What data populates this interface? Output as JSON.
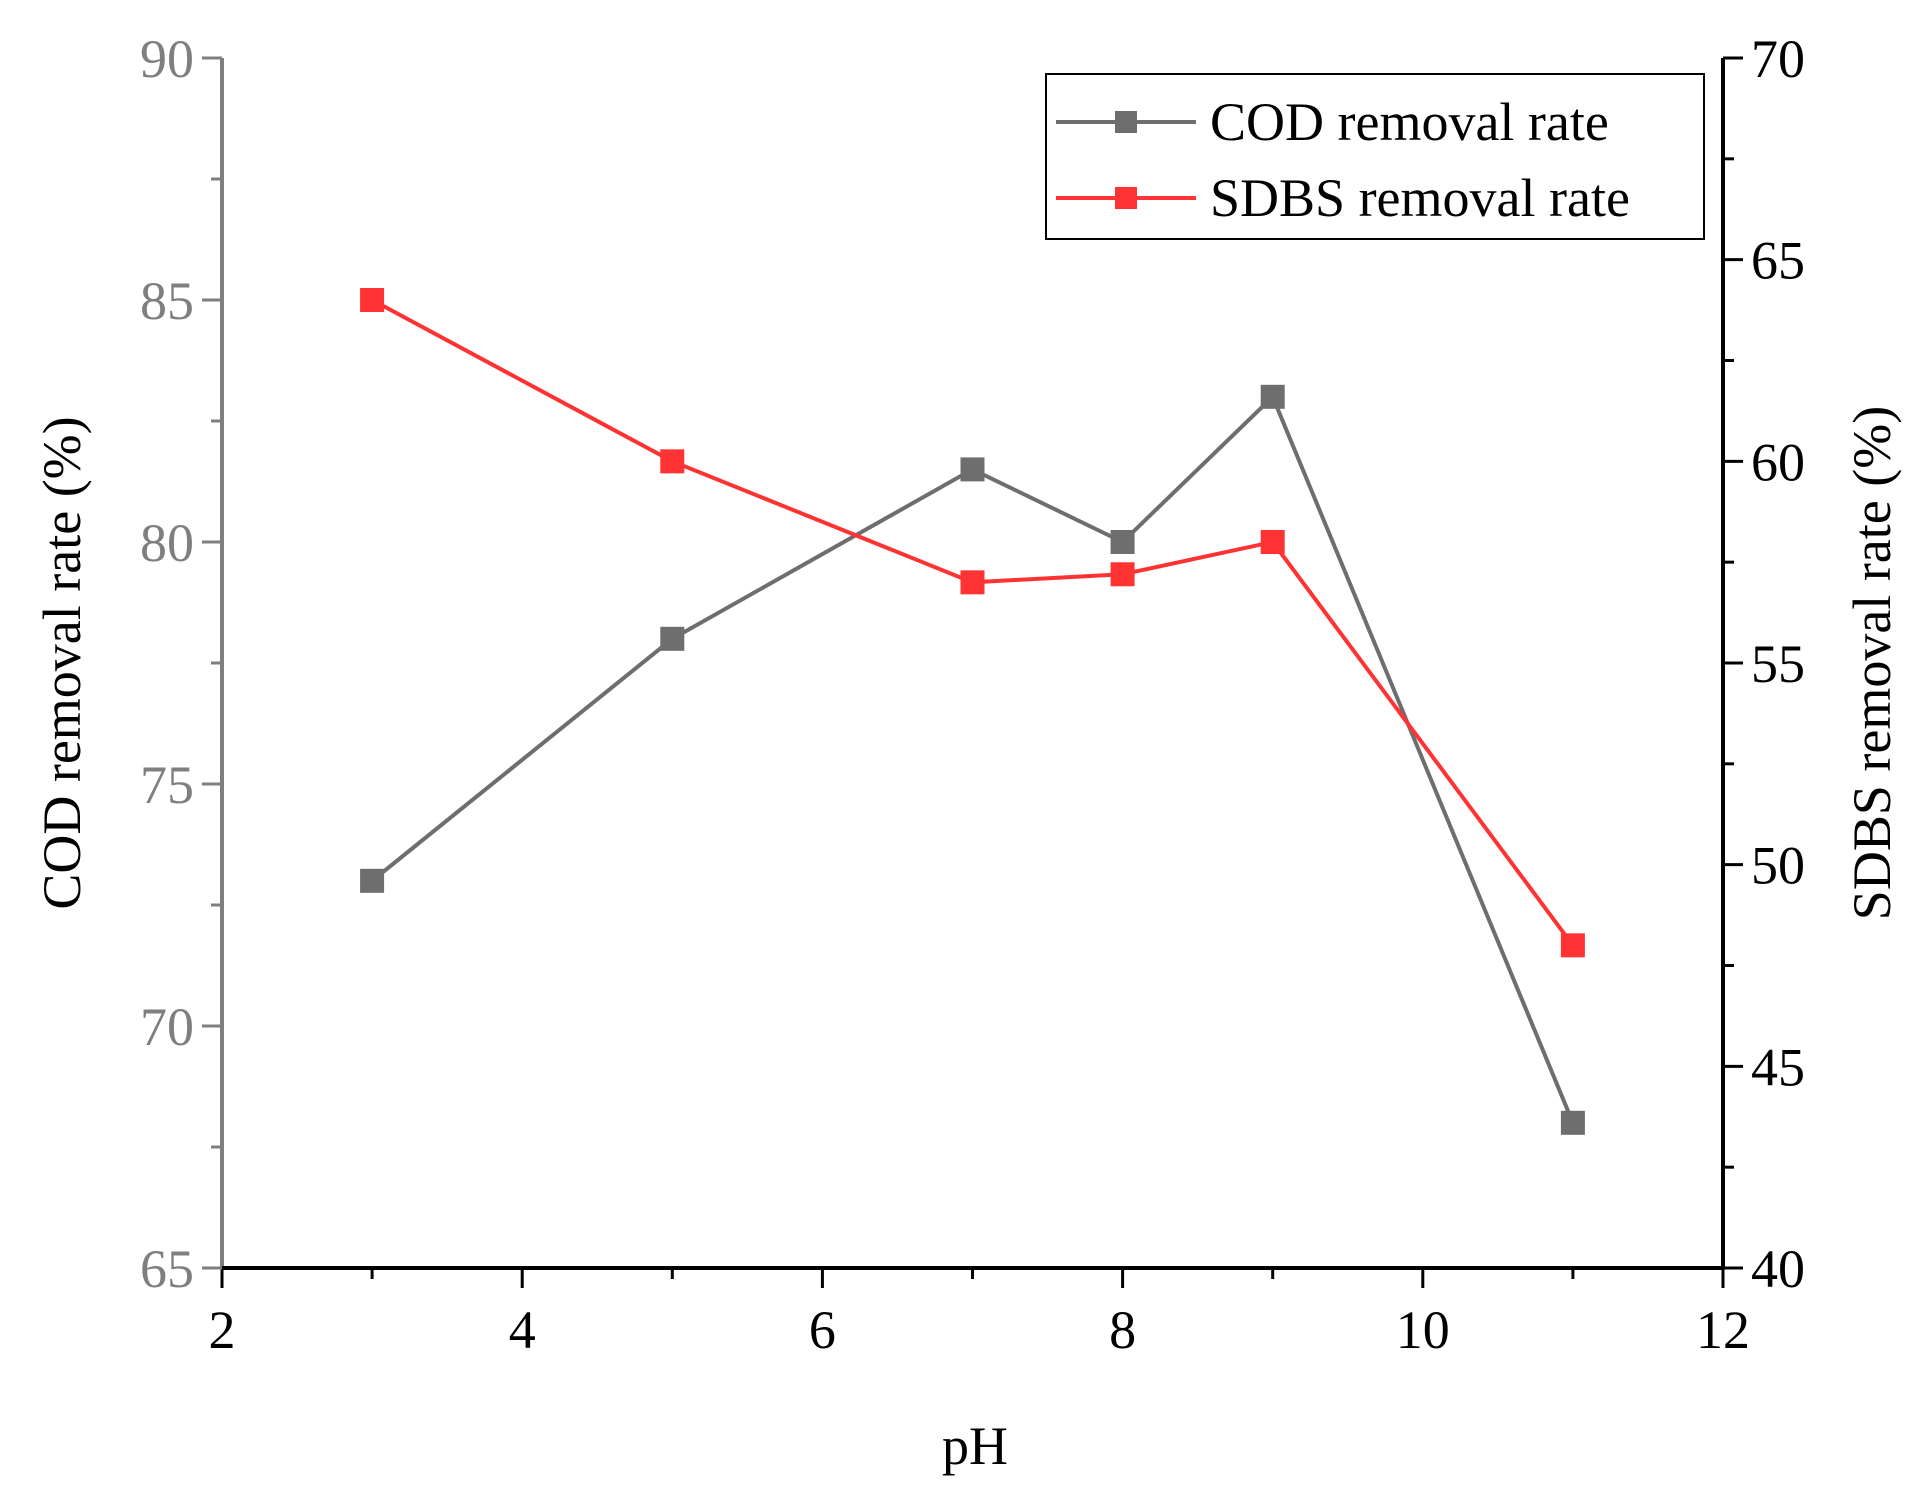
{
  "chart_data": {
    "type": "line",
    "xlabel": "pH",
    "ylabel_left": "COD removal rate (%)",
    "ylabel_right": "SDBS removal rate (%)",
    "x_axis": {
      "range": [
        2,
        12
      ],
      "ticks": [
        "2",
        "4",
        "6",
        "8",
        "10",
        "12"
      ],
      "tick_values": [
        2,
        4,
        6,
        8,
        10,
        12
      ],
      "minor_step": 1
    },
    "y_left_axis": {
      "range": [
        65,
        90
      ],
      "ticks": [
        "65",
        "70",
        "75",
        "80",
        "85",
        "90"
      ],
      "tick_values": [
        65,
        70,
        75,
        80,
        85,
        90
      ],
      "minor_step": 2.5,
      "color": "#7f7f7f"
    },
    "y_right_axis": {
      "range": [
        40,
        70
      ],
      "ticks": [
        "40",
        "45",
        "50",
        "55",
        "60",
        "65",
        "70"
      ],
      "tick_values": [
        40,
        45,
        50,
        55,
        60,
        65,
        70
      ],
      "minor_step": 2.5,
      "color": "#000000"
    },
    "series": [
      {
        "name": "COD removal rate",
        "axis": "left",
        "color": "#6e6e6e",
        "marker": "square",
        "x": [
          3,
          5,
          7,
          8,
          9,
          11
        ],
        "y": [
          73,
          78,
          81.5,
          80,
          83,
          68
        ]
      },
      {
        "name": "SDBS removal rate",
        "axis": "right",
        "color": "#ff3333",
        "marker": "square",
        "x": [
          3,
          5,
          7,
          8,
          9,
          11
        ],
        "y": [
          64,
          60,
          57,
          57.2,
          58,
          48
        ]
      }
    ],
    "legend": {
      "position": "top-right"
    },
    "grid": false
  }
}
